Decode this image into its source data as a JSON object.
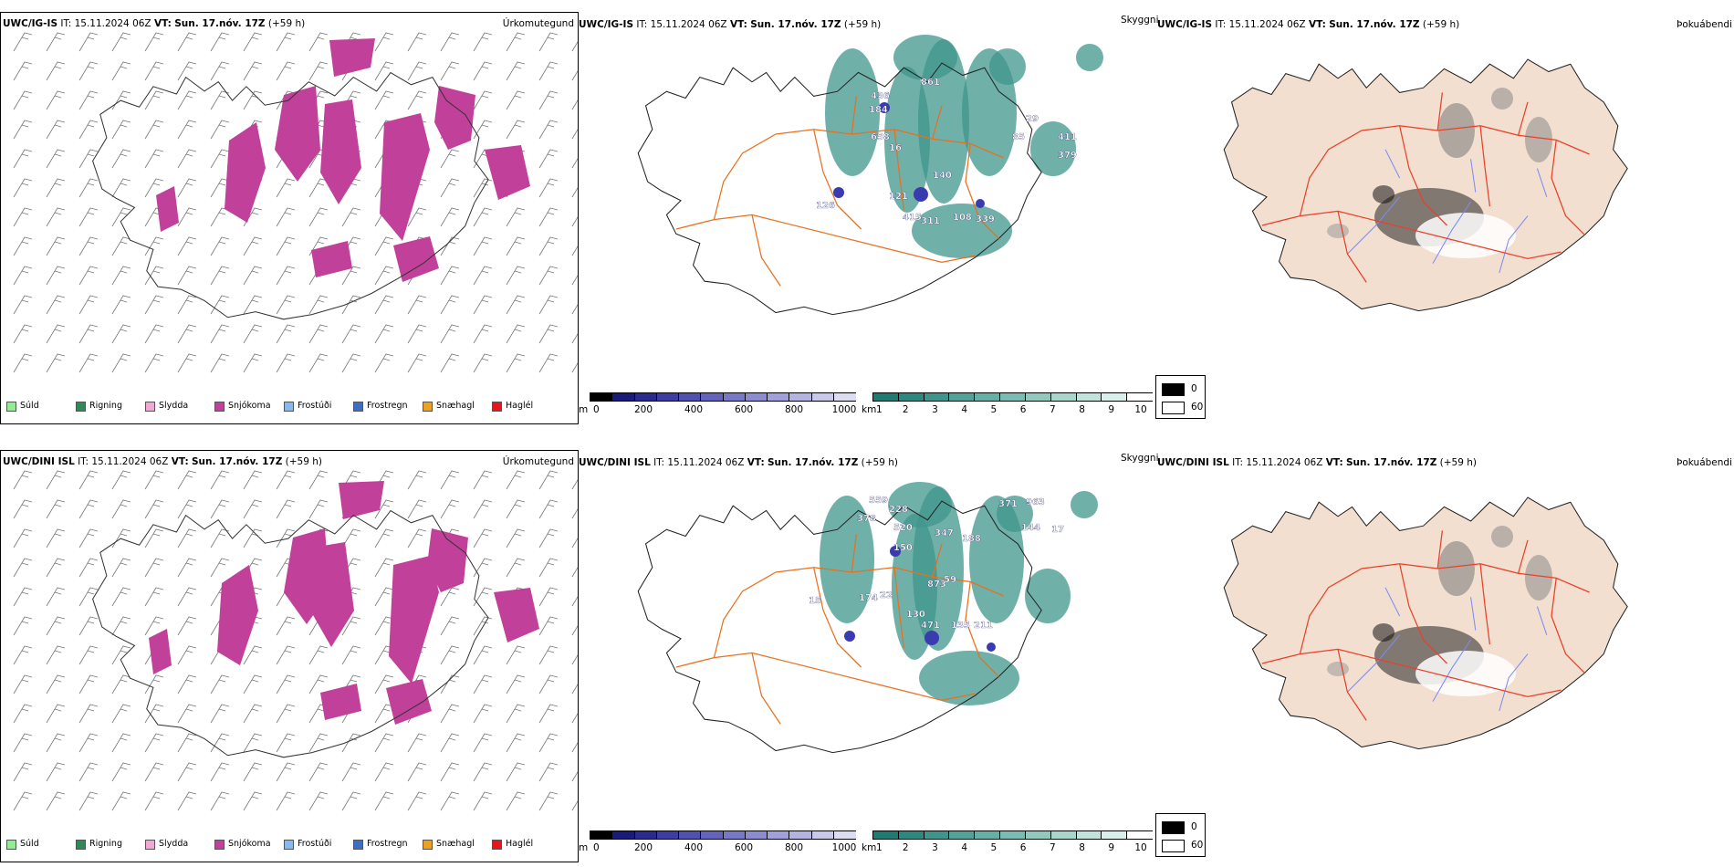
{
  "rows": [
    {
      "model": "UWC/IG-IS",
      "it_label": "IT:",
      "it_value": "15.11.2024 06Z",
      "vt_label": "VT:",
      "vt_value": "Sun. 17.nóv. 17Z",
      "lead": "(+59 h)",
      "snow_labels": [
        "436",
        "184",
        "861",
        "658",
        "16",
        "140",
        "121",
        "415",
        "126",
        "311",
        "108",
        "339",
        "29",
        "85",
        "411",
        "379"
      ]
    },
    {
      "model": "UWC/DINI ISL",
      "it_label": "IT:",
      "it_value": "15.11.2024 06Z",
      "vt_label": "VT:",
      "vt_value": "Sun. 17.nóv. 17Z",
      "lead": "(+59 h)",
      "snow_labels": [
        "559",
        "228",
        "378",
        "520",
        "347",
        "150",
        "371",
        "963",
        "144",
        "17",
        "174",
        "22",
        "15",
        "130",
        "471",
        "135",
        "211",
        "873",
        "59",
        "188"
      ]
    }
  ],
  "panel_vars": {
    "precip_type": "Úrkomutegund",
    "visibility": "Skyggni",
    "fog": "Þokuábendi"
  },
  "precip_legend": [
    {
      "label": "Súld",
      "color": "#90ee90"
    },
    {
      "label": "Rigning",
      "color": "#2e8b57"
    },
    {
      "label": "Slydda",
      "color": "#f4a6d6"
    },
    {
      "label": "Snjókoma",
      "color": "#c0409a"
    },
    {
      "label": "Frostúði",
      "color": "#87b9f0"
    },
    {
      "label": "Frostregn",
      "color": "#3b6fc4"
    },
    {
      "label": "Snæhagl",
      "color": "#f0a020"
    },
    {
      "label": "Haglél",
      "color": "#e8151b"
    }
  ],
  "colorbar_m": {
    "unit": "m",
    "ticks": [
      "0",
      "200",
      "400",
      "600",
      "800",
      "1000"
    ],
    "colors": [
      "#000000",
      "#1a1a7a",
      "#2b2b8f",
      "#3d3da3",
      "#5050b0",
      "#6464bc",
      "#7878c6",
      "#8c8cd0",
      "#a0a0da",
      "#b4b4e2",
      "#c8c8ea",
      "#dcdcf2"
    ]
  },
  "colorbar_km": {
    "unit": "km",
    "ticks": [
      "1",
      "2",
      "3",
      "4",
      "5",
      "6",
      "7",
      "8",
      "9",
      "10"
    ],
    "colors": [
      "#1f7a72",
      "#2e8880",
      "#3f958c",
      "#52a298",
      "#66afa5",
      "#7bbcb2",
      "#91c9bf",
      "#a8d6cd",
      "#c0e3dc",
      "#d9efeb",
      "#ffffff"
    ]
  },
  "fog_legend": [
    {
      "label": "0",
      "color": "#000000"
    },
    {
      "label": "60",
      "color": "#ffffff"
    }
  ],
  "colors": {
    "snow": "#c0409a",
    "land_fog": "#f3dfd0",
    "roads": "#e8701e",
    "roads_fog": "#e8412a",
    "rivers": "#7b8cf0",
    "vis_fill": "#3f958c",
    "vis_low": "#3b3bb0"
  }
}
